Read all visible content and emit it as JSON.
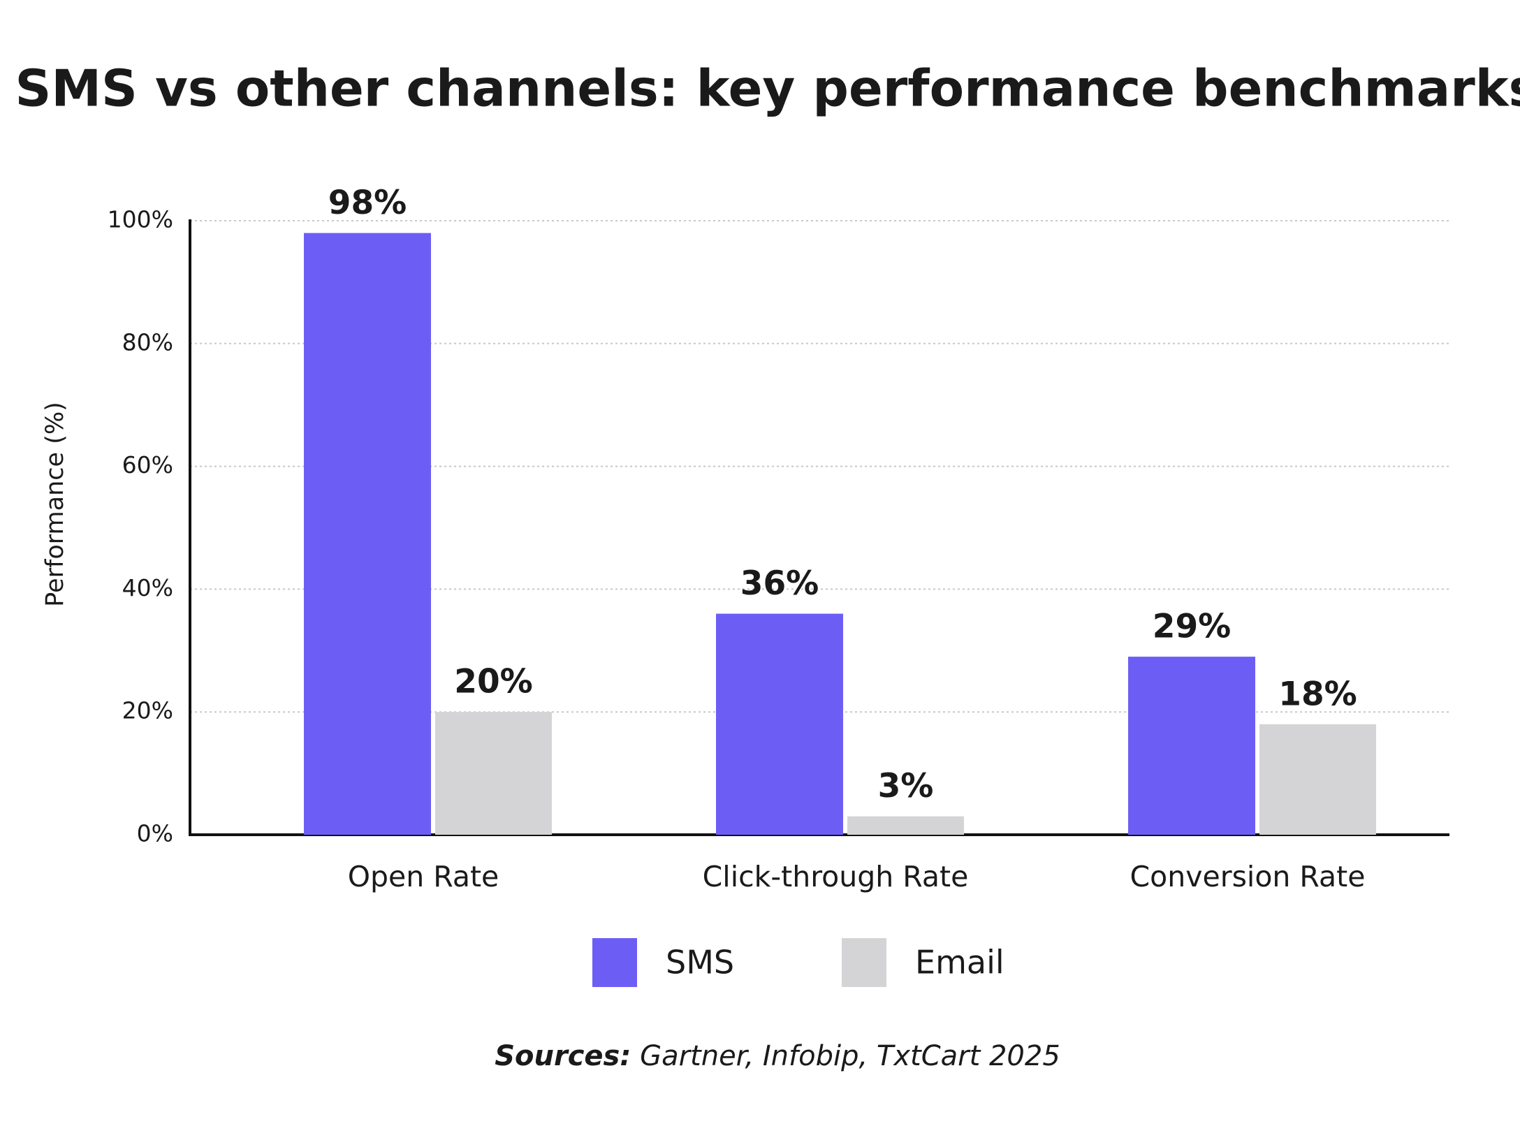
{
  "chart_data": {
    "type": "bar",
    "title": "SMS vs other channels: key performance benchmarks",
    "y_label": "Performance (%)",
    "categories": [
      "Open Rate",
      "Click-through Rate",
      "Conversion Rate"
    ],
    "series": [
      {
        "name": "SMS",
        "color": "#6c5ef5",
        "label_color": "#6c5ef5",
        "values": [
          98,
          36,
          29
        ],
        "value_labels": [
          "98%",
          "36%",
          "29%"
        ]
      },
      {
        "name": "Email",
        "color": "#d4d4d6",
        "label_color": "#8a8a8a",
        "values": [
          20,
          3,
          18
        ],
        "value_labels": [
          "20%",
          "3%",
          "18%"
        ]
      }
    ],
    "ylim": [
      0,
      100
    ],
    "yticks": [
      {
        "value": 0,
        "label": "0%"
      },
      {
        "value": 20,
        "label": "20%"
      },
      {
        "value": 40,
        "label": "40%"
      },
      {
        "value": 60,
        "label": "60%"
      },
      {
        "value": 80,
        "label": "80%"
      },
      {
        "value": 100,
        "label": "100%"
      }
    ],
    "grid": true,
    "source": {
      "label": "Sources:",
      "text": "Gartner, Infobip, TxtCart 2025"
    }
  }
}
